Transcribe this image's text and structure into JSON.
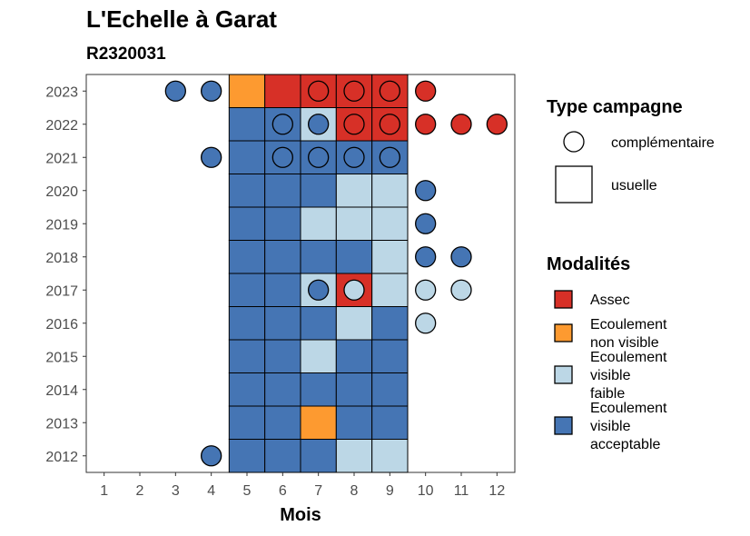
{
  "chart_data": {
    "type": "heatmap",
    "title": "L'Echelle à Garat",
    "subtitle": "R2320031",
    "xlabel": "Mois",
    "ylabel": "",
    "x_ticks": [
      "1",
      "2",
      "3",
      "4",
      "5",
      "6",
      "7",
      "8",
      "9",
      "10",
      "11",
      "12"
    ],
    "y_ticks": [
      "2012",
      "2013",
      "2014",
      "2015",
      "2016",
      "2017",
      "2018",
      "2019",
      "2020",
      "2021",
      "2022",
      "2023"
    ],
    "xlim": [
      0.5,
      12.5
    ],
    "ylim": [
      2011.5,
      2023.5
    ],
    "grid": false,
    "legend_position": "right",
    "colors": {
      "Assec": "#d73027",
      "Ecoulement non visible": "#fd9a30",
      "Ecoulement visible faible": "#bcd7e6",
      "Ecoulement visible acceptable": "#4575b4"
    },
    "legend": {
      "shape_title": "Type campagne",
      "shapes": [
        {
          "key": "complementaire",
          "label": "complémentaire",
          "shape": "circle"
        },
        {
          "key": "usuelle",
          "label": "usuelle",
          "shape": "square"
        }
      ],
      "fill_title": "Modalités",
      "fills": [
        {
          "key": "Assec",
          "lines": [
            "Assec"
          ]
        },
        {
          "key": "Ecoulement non visible",
          "lines": [
            "Ecoulement",
            "non visible"
          ]
        },
        {
          "key": "Ecoulement visible faible",
          "lines": [
            "Ecoulement",
            "visible",
            "faible"
          ]
        },
        {
          "key": "Ecoulement visible acceptable",
          "lines": [
            "Ecoulement",
            "visible",
            "acceptable"
          ]
        }
      ]
    },
    "tiles": [
      {
        "year": 2023,
        "month": 5,
        "modalite": "Ecoulement non visible"
      },
      {
        "year": 2023,
        "month": 6,
        "modalite": "Assec"
      },
      {
        "year": 2023,
        "month": 7,
        "modalite": "Assec"
      },
      {
        "year": 2023,
        "month": 8,
        "modalite": "Assec"
      },
      {
        "year": 2023,
        "month": 9,
        "modalite": "Assec"
      },
      {
        "year": 2022,
        "month": 5,
        "modalite": "Ecoulement visible acceptable"
      },
      {
        "year": 2022,
        "month": 6,
        "modalite": "Ecoulement visible acceptable"
      },
      {
        "year": 2022,
        "month": 7,
        "modalite": "Ecoulement visible faible"
      },
      {
        "year": 2022,
        "month": 8,
        "modalite": "Assec"
      },
      {
        "year": 2022,
        "month": 9,
        "modalite": "Assec"
      },
      {
        "year": 2021,
        "month": 5,
        "modalite": "Ecoulement visible acceptable"
      },
      {
        "year": 2021,
        "month": 6,
        "modalite": "Ecoulement visible acceptable"
      },
      {
        "year": 2021,
        "month": 7,
        "modalite": "Ecoulement visible acceptable"
      },
      {
        "year": 2021,
        "month": 8,
        "modalite": "Ecoulement visible acceptable"
      },
      {
        "year": 2021,
        "month": 9,
        "modalite": "Ecoulement visible acceptable"
      },
      {
        "year": 2020,
        "month": 5,
        "modalite": "Ecoulement visible acceptable"
      },
      {
        "year": 2020,
        "month": 6,
        "modalite": "Ecoulement visible acceptable"
      },
      {
        "year": 2020,
        "month": 7,
        "modalite": "Ecoulement visible acceptable"
      },
      {
        "year": 2020,
        "month": 8,
        "modalite": "Ecoulement visible faible"
      },
      {
        "year": 2020,
        "month": 9,
        "modalite": "Ecoulement visible faible"
      },
      {
        "year": 2019,
        "month": 5,
        "modalite": "Ecoulement visible acceptable"
      },
      {
        "year": 2019,
        "month": 6,
        "modalite": "Ecoulement visible acceptable"
      },
      {
        "year": 2019,
        "month": 7,
        "modalite": "Ecoulement visible faible"
      },
      {
        "year": 2019,
        "month": 8,
        "modalite": "Ecoulement visible faible"
      },
      {
        "year": 2019,
        "month": 9,
        "modalite": "Ecoulement visible faible"
      },
      {
        "year": 2018,
        "month": 5,
        "modalite": "Ecoulement visible acceptable"
      },
      {
        "year": 2018,
        "month": 6,
        "modalite": "Ecoulement visible acceptable"
      },
      {
        "year": 2018,
        "month": 7,
        "modalite": "Ecoulement visible acceptable"
      },
      {
        "year": 2018,
        "month": 8,
        "modalite": "Ecoulement visible acceptable"
      },
      {
        "year": 2018,
        "month": 9,
        "modalite": "Ecoulement visible faible"
      },
      {
        "year": 2017,
        "month": 5,
        "modalite": "Ecoulement visible acceptable"
      },
      {
        "year": 2017,
        "month": 6,
        "modalite": "Ecoulement visible acceptable"
      },
      {
        "year": 2017,
        "month": 7,
        "modalite": "Ecoulement visible faible"
      },
      {
        "year": 2017,
        "month": 8,
        "modalite": "Assec"
      },
      {
        "year": 2017,
        "month": 9,
        "modalite": "Ecoulement visible faible"
      },
      {
        "year": 2016,
        "month": 5,
        "modalite": "Ecoulement visible acceptable"
      },
      {
        "year": 2016,
        "month": 6,
        "modalite": "Ecoulement visible acceptable"
      },
      {
        "year": 2016,
        "month": 7,
        "modalite": "Ecoulement visible acceptable"
      },
      {
        "year": 2016,
        "month": 8,
        "modalite": "Ecoulement visible faible"
      },
      {
        "year": 2016,
        "month": 9,
        "modalite": "Ecoulement visible acceptable"
      },
      {
        "year": 2015,
        "month": 5,
        "modalite": "Ecoulement visible acceptable"
      },
      {
        "year": 2015,
        "month": 6,
        "modalite": "Ecoulement visible acceptable"
      },
      {
        "year": 2015,
        "month": 7,
        "modalite": "Ecoulement visible faible"
      },
      {
        "year": 2015,
        "month": 8,
        "modalite": "Ecoulement visible acceptable"
      },
      {
        "year": 2015,
        "month": 9,
        "modalite": "Ecoulement visible acceptable"
      },
      {
        "year": 2014,
        "month": 5,
        "modalite": "Ecoulement visible acceptable"
      },
      {
        "year": 2014,
        "month": 6,
        "modalite": "Ecoulement visible acceptable"
      },
      {
        "year": 2014,
        "month": 7,
        "modalite": "Ecoulement visible acceptable"
      },
      {
        "year": 2014,
        "month": 8,
        "modalite": "Ecoulement visible acceptable"
      },
      {
        "year": 2014,
        "month": 9,
        "modalite": "Ecoulement visible acceptable"
      },
      {
        "year": 2013,
        "month": 5,
        "modalite": "Ecoulement visible acceptable"
      },
      {
        "year": 2013,
        "month": 6,
        "modalite": "Ecoulement visible acceptable"
      },
      {
        "year": 2013,
        "month": 7,
        "modalite": "Ecoulement non visible"
      },
      {
        "year": 2013,
        "month": 8,
        "modalite": "Ecoulement visible acceptable"
      },
      {
        "year": 2013,
        "month": 9,
        "modalite": "Ecoulement visible acceptable"
      },
      {
        "year": 2012,
        "month": 5,
        "modalite": "Ecoulement visible acceptable"
      },
      {
        "year": 2012,
        "month": 6,
        "modalite": "Ecoulement visible acceptable"
      },
      {
        "year": 2012,
        "month": 7,
        "modalite": "Ecoulement visible acceptable"
      },
      {
        "year": 2012,
        "month": 8,
        "modalite": "Ecoulement visible faible"
      },
      {
        "year": 2012,
        "month": 9,
        "modalite": "Ecoulement visible faible"
      }
    ],
    "points": [
      {
        "year": 2023,
        "month": 3,
        "modalite": "Ecoulement visible acceptable"
      },
      {
        "year": 2023,
        "month": 4,
        "modalite": "Ecoulement visible acceptable"
      },
      {
        "year": 2023,
        "month": 7,
        "modalite": "Assec"
      },
      {
        "year": 2023,
        "month": 8,
        "modalite": "Assec"
      },
      {
        "year": 2023,
        "month": 9,
        "modalite": "Assec"
      },
      {
        "year": 2023,
        "month": 10,
        "modalite": "Assec"
      },
      {
        "year": 2022,
        "month": 6,
        "modalite": "Ecoulement visible acceptable"
      },
      {
        "year": 2022,
        "month": 7,
        "modalite": "Ecoulement visible acceptable"
      },
      {
        "year": 2022,
        "month": 8,
        "modalite": "Assec"
      },
      {
        "year": 2022,
        "month": 9,
        "modalite": "Assec"
      },
      {
        "year": 2022,
        "month": 10,
        "modalite": "Assec"
      },
      {
        "year": 2022,
        "month": 11,
        "modalite": "Assec"
      },
      {
        "year": 2022,
        "month": 12,
        "modalite": "Assec"
      },
      {
        "year": 2021,
        "month": 4,
        "modalite": "Ecoulement visible acceptable"
      },
      {
        "year": 2021,
        "month": 6,
        "modalite": "Ecoulement visible acceptable"
      },
      {
        "year": 2021,
        "month": 7,
        "modalite": "Ecoulement visible acceptable"
      },
      {
        "year": 2021,
        "month": 8,
        "modalite": "Ecoulement visible acceptable"
      },
      {
        "year": 2021,
        "month": 9,
        "modalite": "Ecoulement visible acceptable"
      },
      {
        "year": 2020,
        "month": 10,
        "modalite": "Ecoulement visible acceptable"
      },
      {
        "year": 2019,
        "month": 10,
        "modalite": "Ecoulement visible acceptable"
      },
      {
        "year": 2018,
        "month": 10,
        "modalite": "Ecoulement visible acceptable"
      },
      {
        "year": 2018,
        "month": 11,
        "modalite": "Ecoulement visible acceptable"
      },
      {
        "year": 2017,
        "month": 7,
        "modalite": "Ecoulement visible acceptable"
      },
      {
        "year": 2017,
        "month": 8,
        "modalite": "Ecoulement visible faible"
      },
      {
        "year": 2017,
        "month": 10,
        "modalite": "Ecoulement visible faible"
      },
      {
        "year": 2017,
        "month": 11,
        "modalite": "Ecoulement visible faible"
      },
      {
        "year": 2016,
        "month": 10,
        "modalite": "Ecoulement visible faible"
      },
      {
        "year": 2012,
        "month": 4,
        "modalite": "Ecoulement visible acceptable"
      }
    ]
  }
}
